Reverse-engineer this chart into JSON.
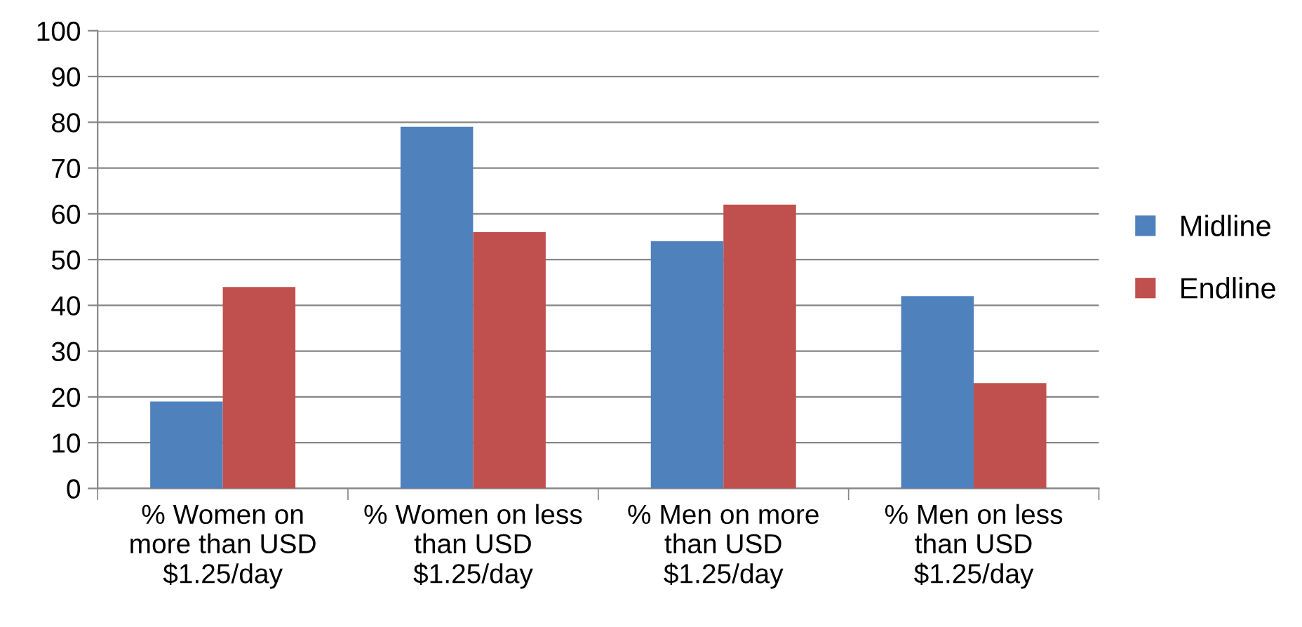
{
  "chart_data": {
    "type": "bar",
    "categories": [
      "% Women on\nmore than USD\n$1.25/day",
      "% Women on less\nthan USD\n$1.25/day",
      "% Men on more\nthan USD\n$1.25/day",
      "% Men on less\nthan USD\n$1.25/day"
    ],
    "series": [
      {
        "name": "Midline",
        "color": "#4f81bd",
        "values": [
          19,
          79,
          54,
          42
        ]
      },
      {
        "name": "Endline",
        "color": "#c0504d",
        "values": [
          44,
          56,
          62,
          23
        ]
      }
    ],
    "ylim": [
      0,
      100
    ],
    "yticks": [
      0,
      10,
      20,
      30,
      40,
      50,
      60,
      70,
      80,
      90,
      100
    ],
    "grid": "y",
    "legend": "right"
  }
}
